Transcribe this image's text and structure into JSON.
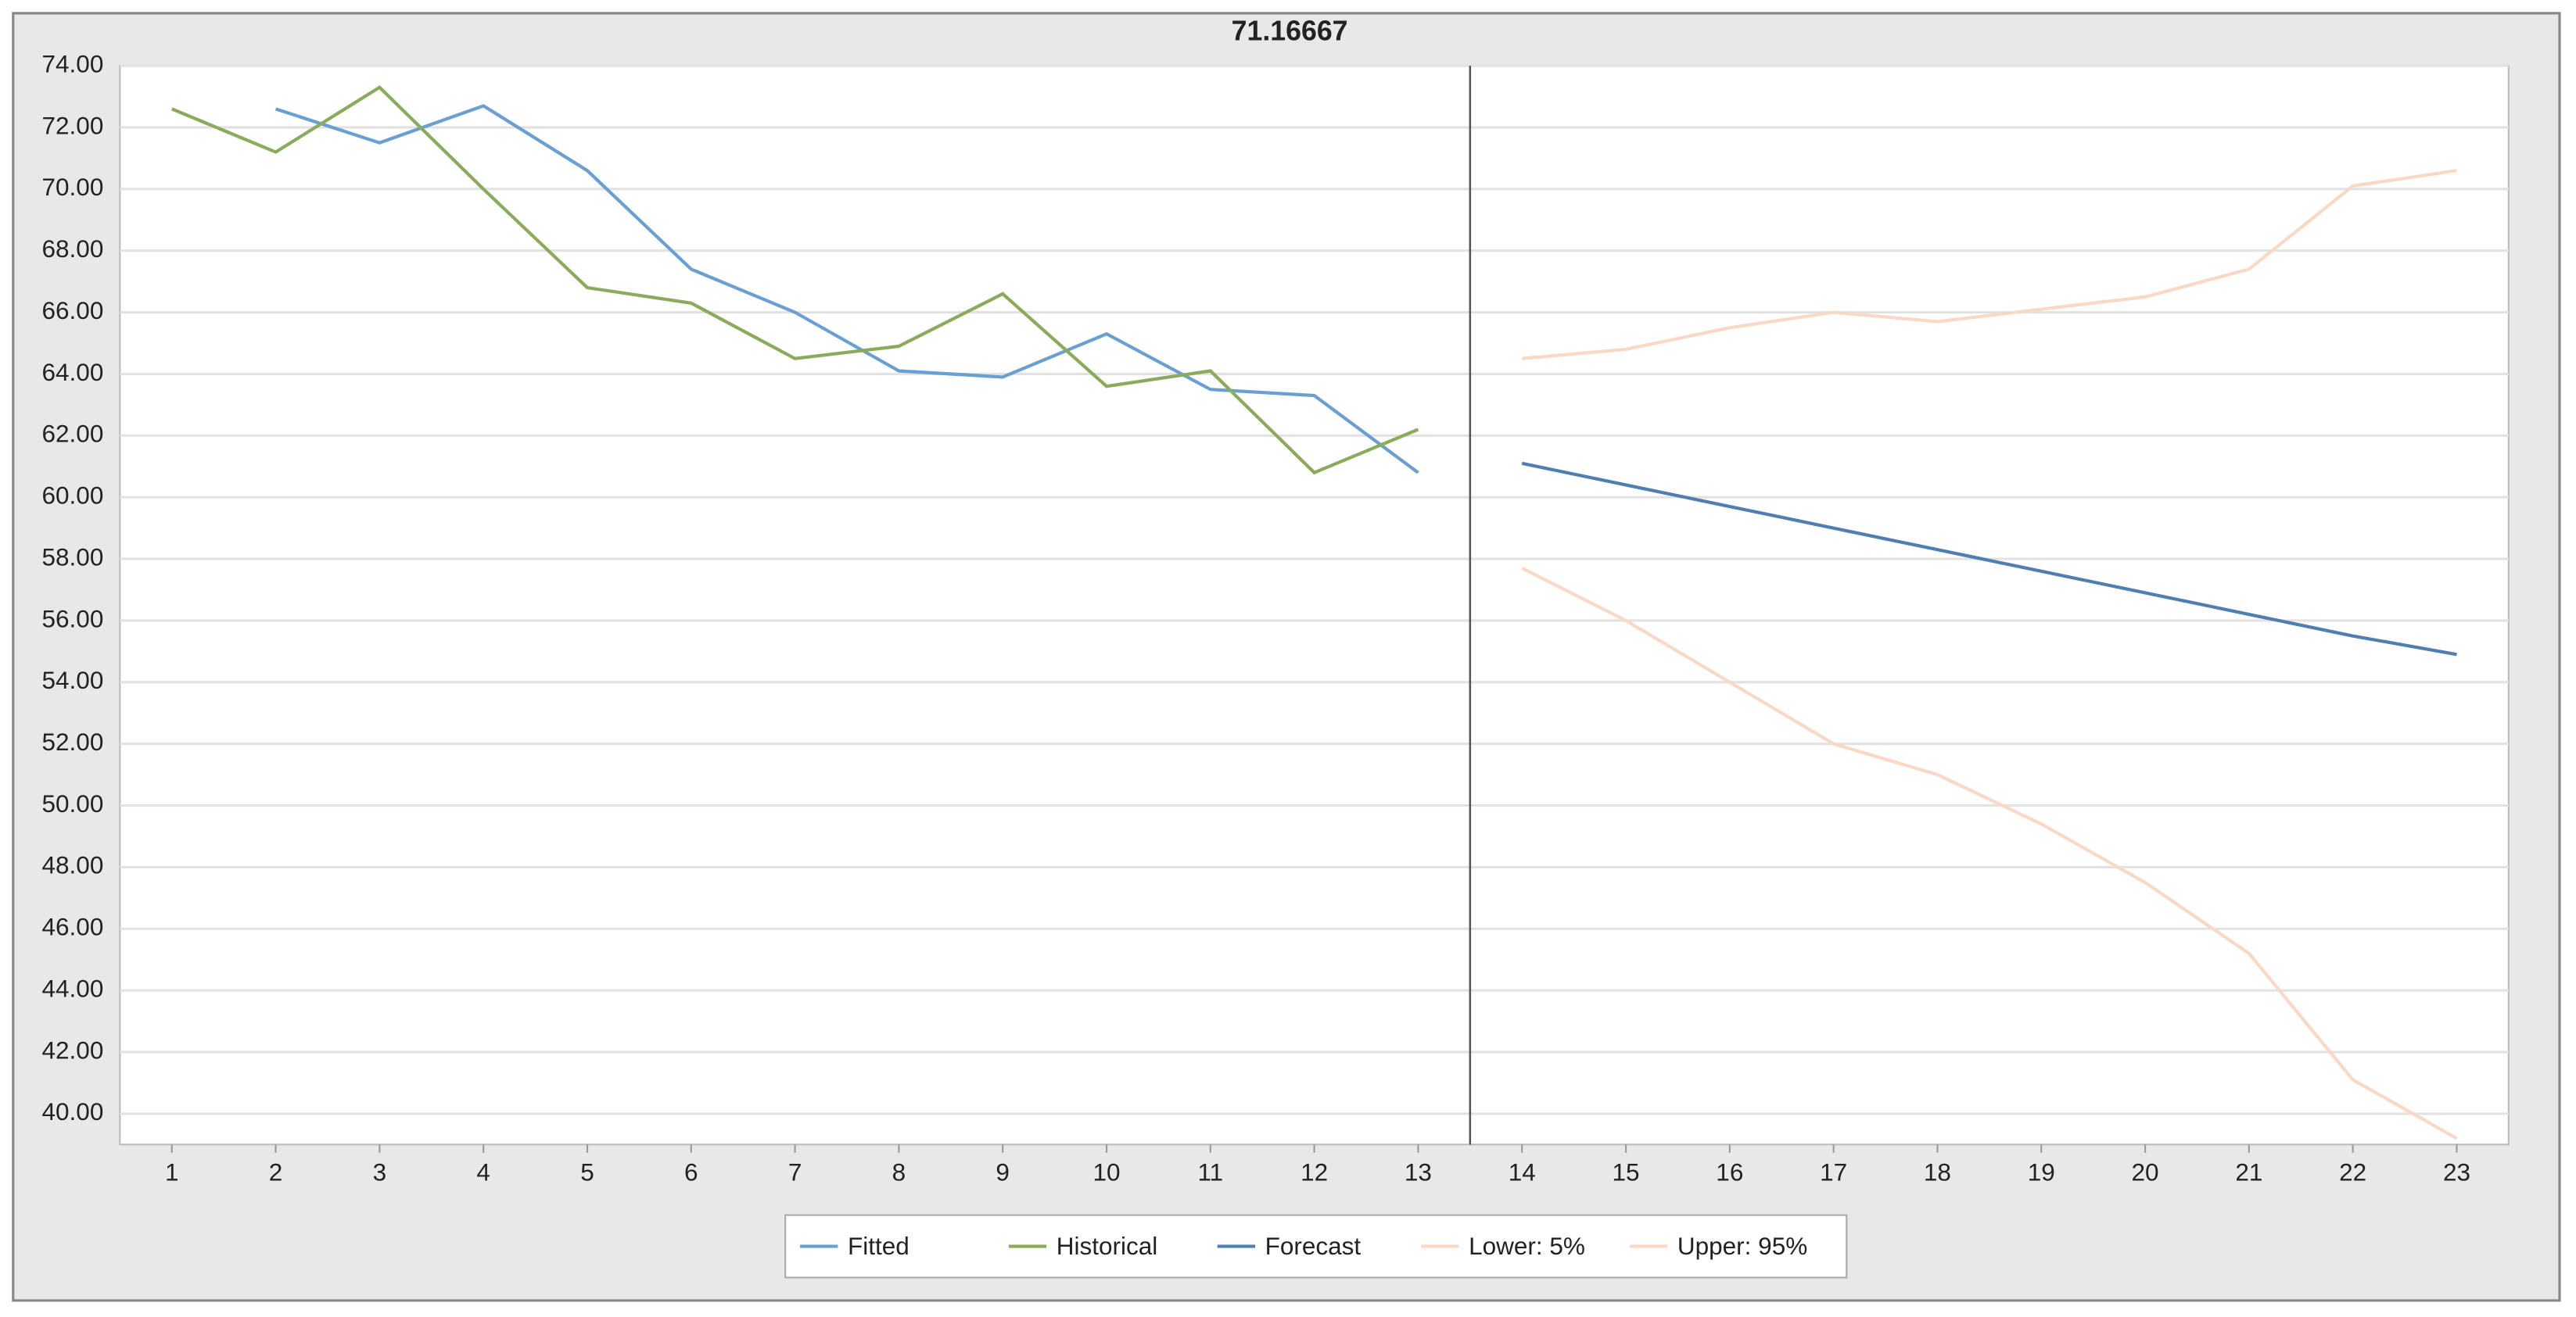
{
  "chart_data": {
    "type": "line",
    "title": "71.16667",
    "x": [
      1,
      2,
      3,
      4,
      5,
      6,
      7,
      8,
      9,
      10,
      11,
      12,
      13,
      14,
      15,
      16,
      17,
      18,
      19,
      20,
      21,
      22,
      23
    ],
    "series": [
      {
        "name": "Fitted",
        "color": "#6a9fd4",
        "values": [
          null,
          72.6,
          71.5,
          72.7,
          70.6,
          67.4,
          66.0,
          64.1,
          63.9,
          65.3,
          63.5,
          63.3,
          60.8,
          null,
          null,
          null,
          null,
          null,
          null,
          null,
          null,
          null,
          null
        ]
      },
      {
        "name": "Historical",
        "color": "#8aab5a",
        "values": [
          72.6,
          71.2,
          73.3,
          70.0,
          66.8,
          66.3,
          64.5,
          64.9,
          66.6,
          63.6,
          64.1,
          60.8,
          62.2,
          null,
          null,
          null,
          null,
          null,
          null,
          null,
          null,
          null,
          null
        ]
      },
      {
        "name": "Forecast",
        "color": "#4f7fb0",
        "values": [
          null,
          null,
          null,
          null,
          null,
          null,
          null,
          null,
          null,
          null,
          null,
          null,
          null,
          61.1,
          60.4,
          59.7,
          59.0,
          58.3,
          57.6,
          56.9,
          56.2,
          55.5,
          54.9
        ]
      },
      {
        "name": "Lower: 5%",
        "color": "#f9d9c6",
        "values": [
          null,
          null,
          null,
          null,
          null,
          null,
          null,
          null,
          null,
          null,
          null,
          null,
          null,
          57.7,
          56.0,
          54.0,
          52.0,
          51.0,
          49.4,
          47.5,
          45.2,
          41.1,
          39.2
        ]
      },
      {
        "name": "Upper: 95%",
        "color": "#f9d9c6",
        "values": [
          null,
          null,
          null,
          null,
          null,
          null,
          null,
          null,
          null,
          null,
          null,
          null,
          null,
          64.5,
          64.8,
          65.5,
          66.0,
          65.7,
          66.1,
          66.5,
          67.4,
          70.1,
          70.6
        ]
      }
    ],
    "xlim": [
      0.5,
      23.5
    ],
    "ylim": [
      39,
      74
    ],
    "xticks": [
      1,
      2,
      3,
      4,
      5,
      6,
      7,
      8,
      9,
      10,
      11,
      12,
      13,
      14,
      15,
      16,
      17,
      18,
      19,
      20,
      21,
      22,
      23
    ],
    "yticks": [
      {
        "value": 40,
        "label": "40.00"
      },
      {
        "value": 42,
        "label": "42.00"
      },
      {
        "value": 44,
        "label": "44.00"
      },
      {
        "value": 46,
        "label": "46.00"
      },
      {
        "value": 48,
        "label": "48.00"
      },
      {
        "value": 50,
        "label": "50.00"
      },
      {
        "value": 52,
        "label": "52.00"
      },
      {
        "value": 54,
        "label": "54.00"
      },
      {
        "value": 56,
        "label": "56.00"
      },
      {
        "value": 58,
        "label": "58.00"
      },
      {
        "value": 60,
        "label": "60.00"
      },
      {
        "value": 62,
        "label": "62.00"
      },
      {
        "value": 64,
        "label": "64.00"
      },
      {
        "value": 66,
        "label": "66.00"
      },
      {
        "value": 68,
        "label": "68.00"
      },
      {
        "value": 70,
        "label": "70.00"
      },
      {
        "value": 72,
        "label": "72.00"
      },
      {
        "value": 74,
        "label": "74.00"
      }
    ],
    "vline": 13.5,
    "grid": true,
    "legend": "bottom"
  }
}
